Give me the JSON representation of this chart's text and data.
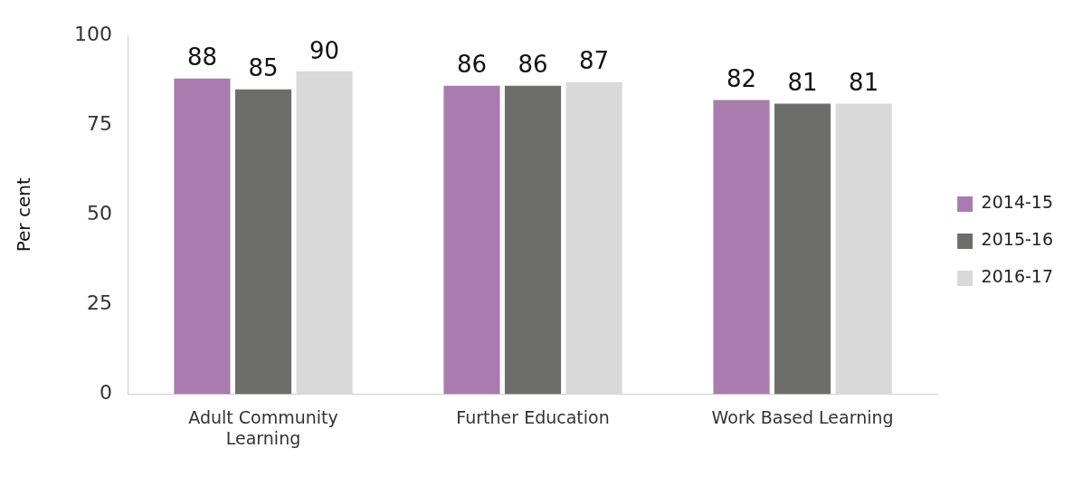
{
  "chart_data": {
    "type": "bar",
    "ylabel": "Per cent",
    "categories": [
      "Adult Community Learning",
      "Further Education",
      "Work Based Learning"
    ],
    "series": [
      {
        "name": "2014-15",
        "color": "#a97bae",
        "values": [
          88,
          86,
          82
        ]
      },
      {
        "name": "2015-16",
        "color": "#6d6d6b",
        "values": [
          85,
          86,
          81
        ]
      },
      {
        "name": "2016-17",
        "color": "#d9d9d9",
        "values": [
          90,
          87,
          81
        ]
      }
    ],
    "ylim": [
      0,
      100
    ],
    "yticks": [
      0,
      25,
      50,
      75,
      100
    ],
    "legend": "right",
    "data_labels": true
  }
}
